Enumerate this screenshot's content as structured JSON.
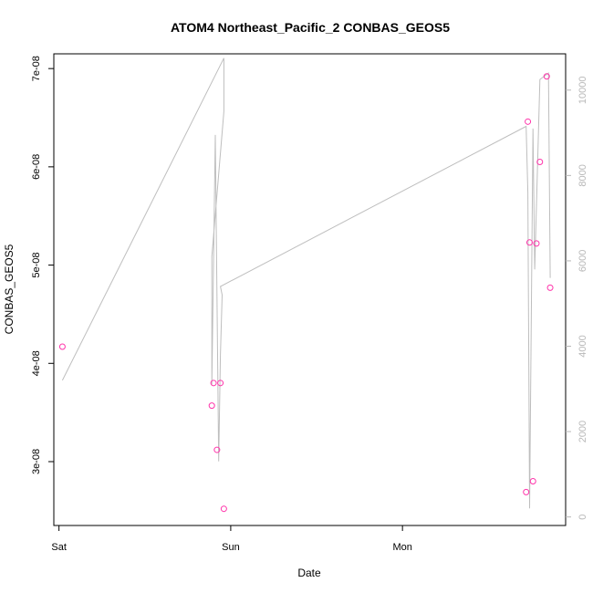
{
  "chart_data": {
    "type": "line",
    "title": "ATOM4 Northeast_Pacific_2 CONBAS_GEOS5",
    "xlabel": "Date",
    "ylabel": "CONBAS_GEOS5",
    "x_ticks": [
      "Sat",
      "Sun",
      "Mon"
    ],
    "y_ticks": [
      "3e-08",
      "4e-08",
      "5e-08",
      "6e-08",
      "7e-08"
    ],
    "y_tick_values": [
      3e-08,
      4e-08,
      5e-08,
      6e-08,
      7e-08
    ],
    "y2_ticks": [
      "0",
      "2000",
      "4000",
      "6000",
      "8000",
      "10000"
    ],
    "y2_tick_values": [
      0,
      2000,
      4000,
      6000,
      8000,
      10000
    ],
    "xlim": [
      -0.03,
      2.95
    ],
    "ylim": [
      2.35e-08,
      7.15e-08
    ],
    "y2lim": [
      -200,
      10850
    ],
    "grid": false,
    "colors": {
      "points": "#ff33aa",
      "line": "#bebebe",
      "axis": "#000000",
      "right_axis": "#b8b8b8"
    },
    "series": [
      {
        "axis": "right",
        "values": [
          {
            "x": 0.02,
            "y": 3200
          },
          {
            "x": 0.96,
            "y": 10750
          },
          {
            "x": 0.96,
            "y": 9500
          },
          {
            "x": 0.89,
            "y": 6100
          },
          {
            "x": 0.89,
            "y": 3100
          },
          {
            "x": 0.91,
            "y": 8950
          },
          {
            "x": 0.93,
            "y": 1300
          },
          {
            "x": 0.94,
            "y": 3800
          },
          {
            "x": 0.95,
            "y": 5200
          },
          {
            "x": 0.94,
            "y": 5400
          },
          {
            "x": 2.72,
            "y": 9150
          },
          {
            "x": 2.73,
            "y": 7600
          },
          {
            "x": 2.74,
            "y": 200
          },
          {
            "x": 2.76,
            "y": 9100
          },
          {
            "x": 2.77,
            "y": 5800
          },
          {
            "x": 2.8,
            "y": 10250
          },
          {
            "x": 2.85,
            "y": 10400
          },
          {
            "x": 2.86,
            "y": 5600
          }
        ]
      },
      {
        "axis": "left",
        "values": [
          {
            "x": 0.02,
            "y": 4.17e-08
          },
          {
            "x": 0.89,
            "y": 3.57e-08
          },
          {
            "x": 0.9,
            "y": 3.8e-08
          },
          {
            "x": 0.92,
            "y": 3.12e-08
          },
          {
            "x": 0.94,
            "y": 3.8e-08
          },
          {
            "x": 0.96,
            "y": 2.52e-08
          },
          {
            "x": 2.72,
            "y": 2.69e-08
          },
          {
            "x": 2.73,
            "y": 6.46e-08
          },
          {
            "x": 2.74,
            "y": 5.23e-08
          },
          {
            "x": 2.76,
            "y": 2.8e-08
          },
          {
            "x": 2.78,
            "y": 5.22e-08
          },
          {
            "x": 2.8,
            "y": 6.05e-08
          },
          {
            "x": 2.84,
            "y": 6.92e-08
          },
          {
            "x": 2.86,
            "y": 4.77e-08
          }
        ]
      }
    ]
  }
}
